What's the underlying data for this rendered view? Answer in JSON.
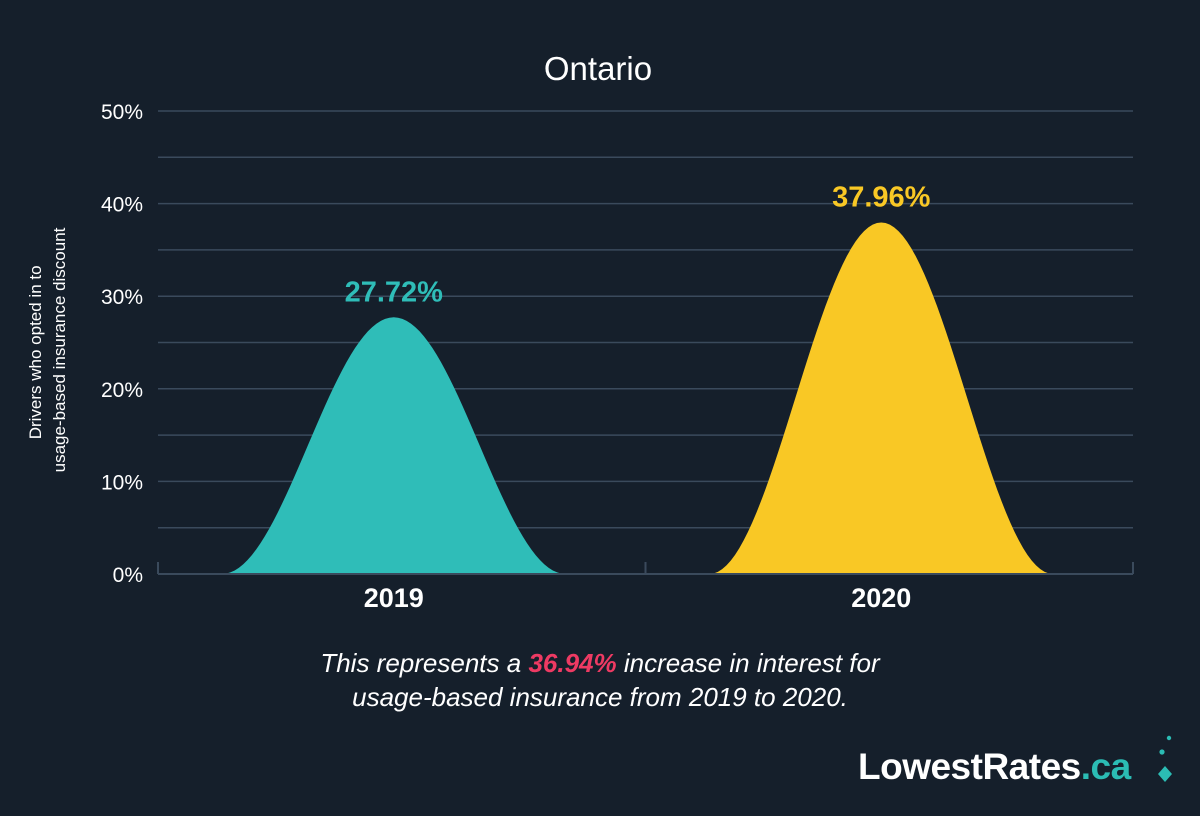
{
  "chart_data": {
    "type": "area",
    "title": "Ontario",
    "ylabel": "Drivers who opted in to usage-based insurance discount",
    "ylabel_lines": [
      "Drivers who opted in to",
      "usage-based insurance discount"
    ],
    "categories": [
      "2019",
      "2020"
    ],
    "values": [
      27.72,
      37.96
    ],
    "value_labels": [
      "27.72%",
      "37.96%"
    ],
    "ylim": [
      0,
      50
    ],
    "yticks": [
      0,
      10,
      20,
      30,
      40,
      50
    ],
    "ytick_labels": [
      "0%",
      "10%",
      "20%",
      "30%",
      "40%",
      "50%"
    ],
    "grid": true,
    "colors": [
      "#2fbdb8",
      "#f9c825"
    ]
  },
  "caption": {
    "before": "This represents a",
    "highlight": "36.94%",
    "after_line1": "increase in interest for",
    "line2": "usage-based insurance from 2019 to 2020."
  },
  "logo": {
    "main": "LowestRates",
    "tld": ".ca"
  },
  "colors": {
    "background": "#151f2b",
    "grid": "#3a4a5c",
    "highlight": "#ee3a63"
  }
}
